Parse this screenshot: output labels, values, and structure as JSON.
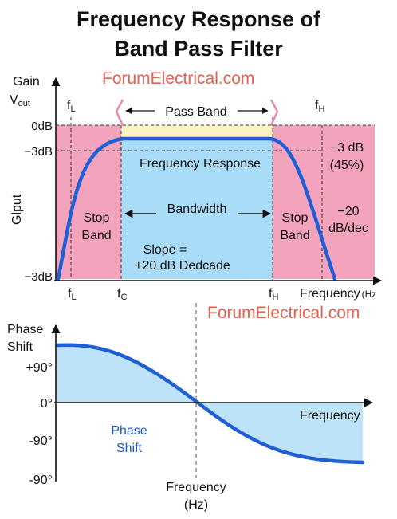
{
  "title": {
    "line1": "Frequency Response of",
    "line2": "Band Pass Filter"
  },
  "watermark": "ForumElectrical.com",
  "colors": {
    "stop_band": "#f4a3bd",
    "pass_band": "#a9dcf8",
    "pass_top": "#fcf3c2",
    "curve": "#1f5fd6",
    "arrow_pink": "#ee88ae",
    "phase_fill": "#bde3f8",
    "watermark": "#e5604f"
  },
  "magnitude": {
    "y_title_gain": "Gain",
    "y_title_vout": "V",
    "y_title_vout_sub": "out",
    "y_axis_label": "Glput",
    "tick_0db": "0dB",
    "tick_3db": "−3dB",
    "tick_bottom": "−3dB",
    "fl_top": "f",
    "fl_top_sub": "L",
    "fh_top": "f",
    "fh_top_sub": "H",
    "pass_band": "Pass Band",
    "frequency_response": "Frequency Response",
    "bandwidth": "Bandwidth",
    "stop_band_line1": "Stop",
    "stop_band_line2": "Band",
    "slope_line1": "Slope =",
    "slope_line2": "+20 dB Dedcade",
    "minus3db_line1": "−3 dB",
    "minus3db_line2": "(45%)",
    "minus20_line1": "−20",
    "minus20_line2": "dB/dec",
    "x_fl": "f",
    "x_fl_sub": "L",
    "x_fc": "f",
    "x_fc_sub": "C",
    "x_fh": "f",
    "x_fh_sub": "H",
    "x_axis_label": "Frequency",
    "x_axis_unit": "(Hz"
  },
  "phase": {
    "y_title_line1": "Phase",
    "y_title_line2": "Shift",
    "tick_plus90": "+90°",
    "tick_0": "0°",
    "tick_minus90": "-90°",
    "tick_bottom": "-90°",
    "x_axis_label": "Frequency",
    "center_label_line1": "Frequency",
    "center_label_line2": "(Hz)",
    "area_label_line1": "Phase",
    "area_label_line2": "Shift"
  }
}
